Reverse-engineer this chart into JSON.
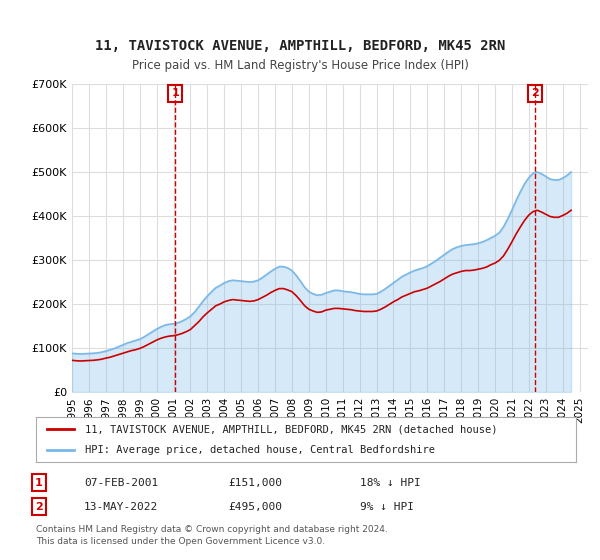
{
  "title": "11, TAVISTOCK AVENUE, AMPTHILL, BEDFORD, MK45 2RN",
  "subtitle": "Price paid vs. HM Land Registry's House Price Index (HPI)",
  "background_color": "#ffffff",
  "plot_bg_color": "#ffffff",
  "grid_color": "#dddddd",
  "ylabel": "",
  "ylim": [
    0,
    700000
  ],
  "yticks": [
    0,
    100000,
    200000,
    300000,
    400000,
    500000,
    600000,
    700000
  ],
  "ytick_labels": [
    "£0",
    "£100K",
    "£200K",
    "£300K",
    "£400K",
    "£500K",
    "£600K",
    "£700K"
  ],
  "xlim_start": 1995.0,
  "xlim_end": 2025.5,
  "xtick_years": [
    1995,
    1996,
    1997,
    1998,
    1999,
    2000,
    2001,
    2002,
    2003,
    2004,
    2005,
    2006,
    2007,
    2008,
    2009,
    2010,
    2011,
    2012,
    2013,
    2014,
    2015,
    2016,
    2017,
    2018,
    2019,
    2020,
    2021,
    2022,
    2023,
    2024,
    2025
  ],
  "sale1_x": 2001.1,
  "sale1_y": 151000,
  "sale1_label": "1",
  "sale2_x": 2022.37,
  "sale2_y": 495000,
  "sale2_label": "2",
  "sale_color": "#cc0000",
  "hpi_color": "#7ab8e8",
  "legend_line1": "11, TAVISTOCK AVENUE, AMPTHILL, BEDFORD, MK45 2RN (detached house)",
  "legend_line2": "HPI: Average price, detached house, Central Bedfordshire",
  "table_row1": [
    "1",
    "07-FEB-2001",
    "£151,000",
    "18% ↓ HPI"
  ],
  "table_row2": [
    "2",
    "13-MAY-2022",
    "£495,000",
    "9% ↓ HPI"
  ],
  "footnote": "Contains HM Land Registry data © Crown copyright and database right 2024.\nThis data is licensed under the Open Government Licence v3.0.",
  "hpi_data_x": [
    1995.0,
    1995.25,
    1995.5,
    1995.75,
    1996.0,
    1996.25,
    1996.5,
    1996.75,
    1997.0,
    1997.25,
    1997.5,
    1997.75,
    1998.0,
    1998.25,
    1998.5,
    1998.75,
    1999.0,
    1999.25,
    1999.5,
    1999.75,
    2000.0,
    2000.25,
    2000.5,
    2000.75,
    2001.0,
    2001.25,
    2001.5,
    2001.75,
    2002.0,
    2002.25,
    2002.5,
    2002.75,
    2003.0,
    2003.25,
    2003.5,
    2003.75,
    2004.0,
    2004.25,
    2004.5,
    2004.75,
    2005.0,
    2005.25,
    2005.5,
    2005.75,
    2006.0,
    2006.25,
    2006.5,
    2006.75,
    2007.0,
    2007.25,
    2007.5,
    2007.75,
    2008.0,
    2008.25,
    2008.5,
    2008.75,
    2009.0,
    2009.25,
    2009.5,
    2009.75,
    2010.0,
    2010.25,
    2010.5,
    2010.75,
    2011.0,
    2011.25,
    2011.5,
    2011.75,
    2012.0,
    2012.25,
    2012.5,
    2012.75,
    2013.0,
    2013.25,
    2013.5,
    2013.75,
    2014.0,
    2014.25,
    2014.5,
    2014.75,
    2015.0,
    2015.25,
    2015.5,
    2015.75,
    2016.0,
    2016.25,
    2016.5,
    2016.75,
    2017.0,
    2017.25,
    2017.5,
    2017.75,
    2018.0,
    2018.25,
    2018.5,
    2018.75,
    2019.0,
    2019.25,
    2019.5,
    2019.75,
    2020.0,
    2020.25,
    2020.5,
    2020.75,
    2021.0,
    2021.25,
    2021.5,
    2021.75,
    2022.0,
    2022.25,
    2022.5,
    2022.75,
    2023.0,
    2023.25,
    2023.5,
    2023.75,
    2024.0,
    2024.25,
    2024.5
  ],
  "hpi_data_y": [
    88000,
    87000,
    86500,
    87000,
    87500,
    88000,
    89000,
    90500,
    93000,
    96000,
    99000,
    103000,
    107000,
    111000,
    114000,
    117000,
    120000,
    125000,
    131000,
    137000,
    143000,
    148000,
    152000,
    154000,
    155000,
    157000,
    161000,
    166000,
    172000,
    182000,
    194000,
    207000,
    218000,
    228000,
    237000,
    242000,
    248000,
    252000,
    254000,
    253000,
    252000,
    251000,
    250000,
    251000,
    254000,
    260000,
    267000,
    274000,
    280000,
    285000,
    285000,
    282000,
    276000,
    265000,
    252000,
    238000,
    228000,
    223000,
    220000,
    221000,
    225000,
    228000,
    231000,
    231000,
    229000,
    228000,
    227000,
    225000,
    223000,
    222000,
    222000,
    222000,
    223000,
    228000,
    234000,
    241000,
    248000,
    255000,
    262000,
    267000,
    272000,
    276000,
    279000,
    282000,
    286000,
    292000,
    298000,
    305000,
    312000,
    319000,
    325000,
    329000,
    332000,
    334000,
    335000,
    336000,
    338000,
    341000,
    345000,
    350000,
    355000,
    362000,
    375000,
    393000,
    413000,
    435000,
    455000,
    473000,
    487000,
    497000,
    500000,
    496000,
    490000,
    484000,
    482000,
    482000,
    486000,
    492000,
    500000
  ],
  "red_data_x": [
    1995.0,
    1995.25,
    1995.5,
    1995.75,
    1996.0,
    1996.25,
    1996.5,
    1996.75,
    1997.0,
    1997.25,
    1997.5,
    1997.75,
    1998.0,
    1998.25,
    1998.5,
    1998.75,
    1999.0,
    1999.25,
    1999.5,
    1999.75,
    2000.0,
    2000.25,
    2000.5,
    2000.75,
    2001.0,
    2001.25,
    2001.5,
    2001.75,
    2002.0,
    2002.25,
    2002.5,
    2002.75,
    2003.0,
    2003.25,
    2003.5,
    2003.75,
    2004.0,
    2004.25,
    2004.5,
    2004.75,
    2005.0,
    2005.25,
    2005.5,
    2005.75,
    2006.0,
    2006.25,
    2006.5,
    2006.75,
    2007.0,
    2007.25,
    2007.5,
    2007.75,
    2008.0,
    2008.25,
    2008.5,
    2008.75,
    2009.0,
    2009.25,
    2009.5,
    2009.75,
    2010.0,
    2010.25,
    2010.5,
    2010.75,
    2011.0,
    2011.25,
    2011.5,
    2011.75,
    2012.0,
    2012.25,
    2012.5,
    2012.75,
    2013.0,
    2013.25,
    2013.5,
    2013.75,
    2014.0,
    2014.25,
    2014.5,
    2014.75,
    2015.0,
    2015.25,
    2015.5,
    2015.75,
    2016.0,
    2016.25,
    2016.5,
    2016.75,
    2017.0,
    2017.25,
    2017.5,
    2017.75,
    2018.0,
    2018.25,
    2018.5,
    2018.75,
    2019.0,
    2019.25,
    2019.5,
    2019.75,
    2020.0,
    2020.25,
    2020.5,
    2020.75,
    2021.0,
    2021.25,
    2021.5,
    2021.75,
    2022.0,
    2022.25,
    2022.5,
    2022.75,
    2023.0,
    2023.25,
    2023.5,
    2023.75,
    2024.0,
    2024.25,
    2024.5
  ],
  "red_data_y": [
    72000,
    71000,
    70500,
    71000,
    71500,
    72000,
    73000,
    74500,
    77000,
    79000,
    82000,
    85000,
    88000,
    91000,
    94000,
    96000,
    99000,
    103000,
    108000,
    113000,
    118000,
    122000,
    125000,
    127000,
    128000,
    130000,
    133000,
    137000,
    142000,
    151000,
    160000,
    171000,
    180000,
    188000,
    196000,
    200000,
    205000,
    208000,
    210000,
    209000,
    208000,
    207000,
    206000,
    207000,
    210000,
    215000,
    220000,
    226000,
    231000,
    235000,
    235000,
    232000,
    228000,
    219000,
    208000,
    196000,
    188000,
    184000,
    181000,
    182000,
    186000,
    188000,
    190000,
    190000,
    189000,
    188000,
    187000,
    185000,
    184000,
    183000,
    183000,
    183000,
    184000,
    188000,
    193000,
    199000,
    205000,
    210000,
    216000,
    220000,
    224000,
    228000,
    230000,
    233000,
    236000,
    241000,
    246000,
    251000,
    257000,
    263000,
    268000,
    271000,
    274000,
    276000,
    276000,
    277000,
    279000,
    281000,
    284000,
    289000,
    293000,
    299000,
    309000,
    324000,
    341000,
    359000,
    375000,
    390000,
    402000,
    410000,
    413000,
    409000,
    404000,
    399000,
    397000,
    397000,
    401000,
    406000,
    413000
  ]
}
